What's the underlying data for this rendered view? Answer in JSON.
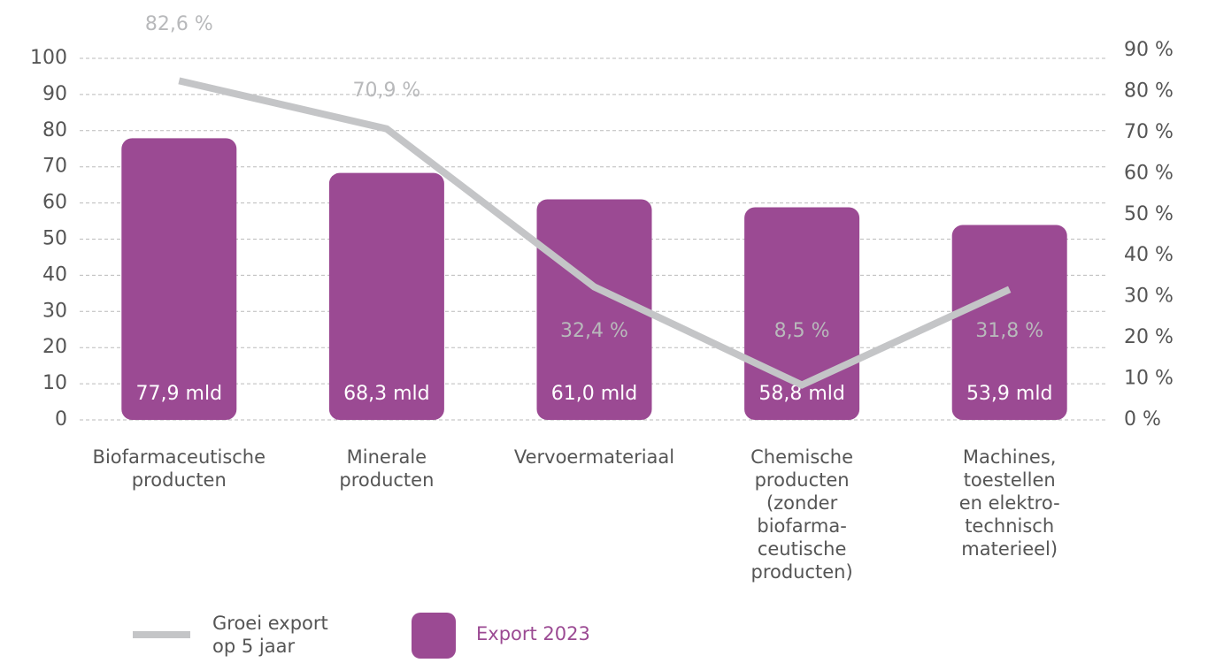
{
  "chart_data": {
    "type": "combo",
    "categories": [
      "Biofarmaceutische\nproducten",
      "Minerale\nproducten",
      "Vervoermateriaal",
      "Chemische\nproducten\n(zonder\nbiofarma-\nceutische\nproducten)",
      "Machines,\ntoestellen\nen elektro-\ntechnisch\nmaterieel)"
    ],
    "series": [
      {
        "name": "Export 2023",
        "type": "bar",
        "color": "#9b4a93",
        "values": [
          77.9,
          68.3,
          61.0,
          58.8,
          53.9
        ],
        "value_labels": [
          "77,9 mld",
          "68,3 mld",
          "61,0 mld",
          "58,8 mld",
          "53,9 mld"
        ]
      },
      {
        "name": "Groei export\nop 5 jaar",
        "type": "line",
        "axis": "y2",
        "color": "#c4c5c7",
        "values": [
          82.6,
          70.9,
          32.4,
          8.5,
          31.8
        ],
        "value_labels": [
          "82,6 %",
          "70,9 %",
          "32,4 %",
          "8,5 %",
          "31,8 %"
        ]
      }
    ],
    "ylim": [
      0,
      100
    ],
    "yticks": [
      0,
      10,
      20,
      30,
      40,
      50,
      60,
      70,
      80,
      90,
      100
    ],
    "y2lim": [
      0,
      90
    ],
    "y2ticks": [
      {
        "value": 0,
        "label": "0 %"
      },
      {
        "value": 10,
        "label": "10 %"
      },
      {
        "value": 20,
        "label": "20 %"
      },
      {
        "value": 30,
        "label": "30 %"
      },
      {
        "value": 40,
        "label": "40 %"
      },
      {
        "value": 50,
        "label": "50 %"
      },
      {
        "value": 60,
        "label": "60 %"
      },
      {
        "value": 70,
        "label": "70 %"
      },
      {
        "value": 80,
        "label": "80 %"
      },
      {
        "value": 90,
        "label": "90 %"
      }
    ],
    "grid": true
  }
}
